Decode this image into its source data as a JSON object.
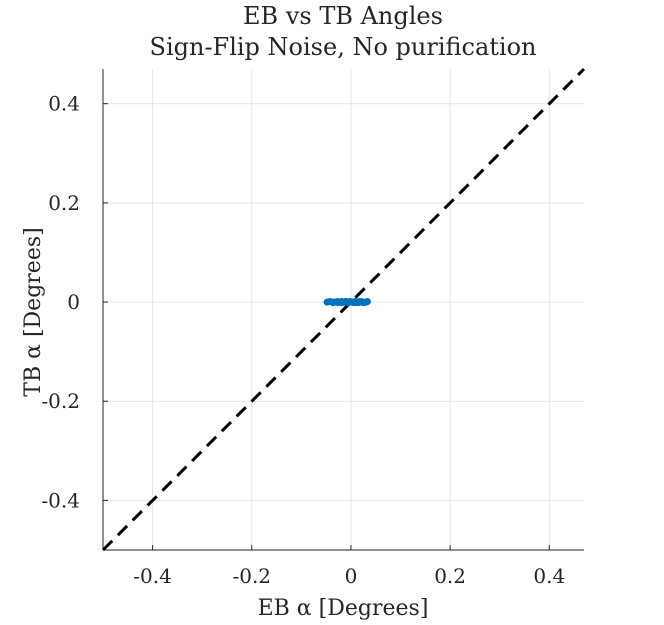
{
  "chart_data": {
    "type": "scatter",
    "title": "EB vs TB Angles",
    "subtitle": "Sign-Flip Noise, No purification",
    "xlabel": "EB α [Degrees]",
    "ylabel": "TB α [Degrees]",
    "xlim": [
      -0.5,
      0.47
    ],
    "ylim": [
      -0.5,
      0.47
    ],
    "xticks": [
      -0.4,
      -0.2,
      0,
      0.2,
      0.4
    ],
    "yticks": [
      -0.4,
      -0.2,
      0,
      0.2,
      0.4
    ],
    "xtick_labels": [
      "-0.4",
      "-0.2",
      "0",
      "0.2",
      "0.4"
    ],
    "ytick_labels": [
      "-0.4",
      "-0.2",
      "0",
      "0.2",
      "0.4"
    ],
    "grid": true,
    "reference_line": {
      "style": "dashed",
      "from": [
        -0.5,
        -0.5
      ],
      "to": [
        0.47,
        0.47
      ],
      "color": "#000000"
    },
    "series": [
      {
        "color": "#0072BD",
        "x": [
          -0.048,
          -0.042,
          -0.036,
          -0.031,
          -0.027,
          -0.022,
          -0.018,
          -0.014,
          -0.011,
          -0.008,
          -0.005,
          -0.002,
          0.0,
          0.003,
          0.006,
          0.009,
          0.012,
          0.015,
          0.018,
          0.021,
          0.024,
          0.027,
          0.03,
          0.033,
          -0.026,
          -0.01,
          0.004,
          0.016,
          0.025,
          -0.034,
          -0.019,
          -0.006,
          0.01,
          0.02
        ],
        "y": [
          0.0,
          0.001,
          -0.001,
          0.0,
          0.001,
          0.0,
          -0.001,
          0.0,
          0.001,
          0.0,
          -0.001,
          0.001,
          0.0,
          0.0,
          -0.001,
          0.001,
          0.0,
          -0.001,
          0.0,
          0.001,
          0.0,
          -0.001,
          0.0,
          0.001,
          -0.001,
          0.001,
          0.0,
          0.001,
          -0.001,
          0.0,
          0.001,
          0.0,
          -0.001,
          0.0
        ]
      }
    ]
  }
}
